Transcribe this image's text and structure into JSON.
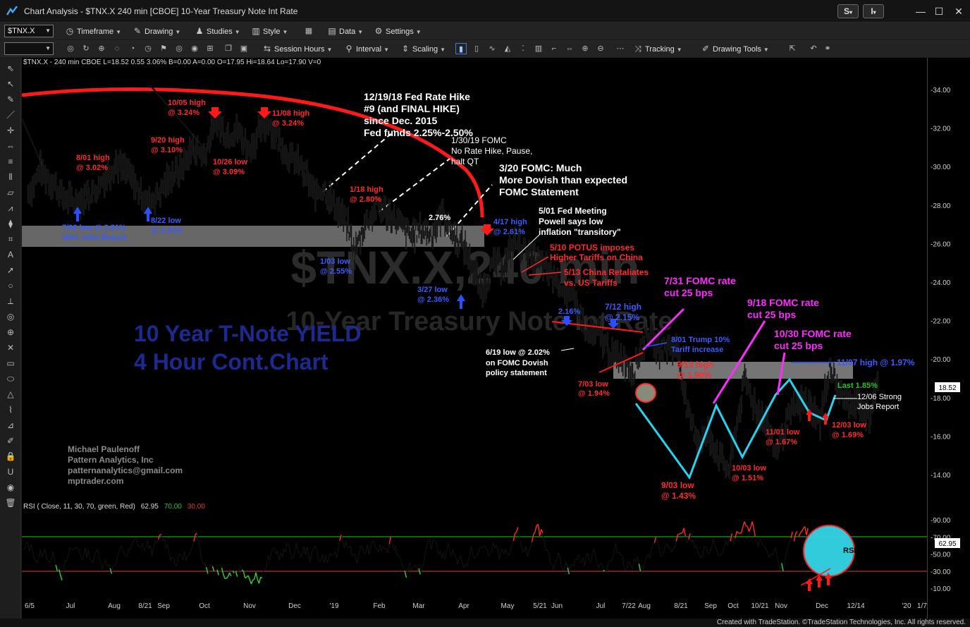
{
  "window": {
    "title": "Chart Analysis - $TNX.X 240 min [CBOE] 10-Year Treasury Note Int Rate",
    "btn_s": "S",
    "btn_i": "I"
  },
  "toolbar1": {
    "symbol": "$TNX.X",
    "timeframe": "Timeframe",
    "drawing": "Drawing",
    "studies": "Studies",
    "style": "Style",
    "data": "Data",
    "settings": "Settings"
  },
  "toolbar2": {
    "session_hours": "Session Hours",
    "interval": "Interval",
    "scaling": "Scaling",
    "tracking": "Tracking",
    "drawing_tools": "Drawing Tools"
  },
  "sidebar": {
    "icons": [
      "pointer-icon",
      "cursor-icon",
      "pencil-icon",
      "trendline-icon",
      "cross-icon",
      "arrows-icon",
      "hline-icon",
      "vline-icon",
      "channel-icon",
      "fib-icon",
      "fan-icon",
      "gann-icon",
      "text-icon",
      "arrow-icon",
      "circle-icon",
      "ruler-icon",
      "target-icon",
      "zoom-icon",
      "delete-icon",
      "rect-icon",
      "ellipse-icon",
      "triangle-icon",
      "polyline-icon",
      "measure-icon",
      "pen-icon",
      "lock-icon",
      "magnet-icon",
      "eye-icon",
      "trash-icon"
    ]
  },
  "chart": {
    "symbol_info": "$TNX.X - 240 min  CBOE  L=18.52  0.55  3.06%  B=0.00  A=0.00  O=17.95  Hi=18.64  Lo=17.90  V=0",
    "watermark_symbol": "$TNX.X,240 min",
    "watermark_name": "10-Year Treasury Note Int Rate",
    "rsi_label": "RSI ( Close, 11, 30, 70, green, Red)",
    "rsi_value": "62.95",
    "rsi_upper": "70.00",
    "rsi_lower": "30.00",
    "last_price_tag": "18.52",
    "rsi_last_tag": "62.95",
    "headline": [
      "10 Year T-Note YIELD",
      "4 Hour Cont.Chart"
    ],
    "author": [
      "Michael Paulenoff",
      "Pattern Analytics, Inc",
      "patternanalytics@gmail.com",
      "mptrader.com"
    ],
    "rsi_circle_label": "RSI",
    "annotations": {
      "fed_hike": [
        "12/19/18 Fed Rate Hike",
        "#9 (and FINAL HIKE)",
        "since Dec. 2015",
        "Fed funds 2.25%-2.50%"
      ],
      "fomc_1_30": [
        "1/30/19 FOMC",
        "No Rate Hike, Pause,",
        "halt QT"
      ],
      "fomc_3_20": [
        "3/20 FOMC: Much",
        "More Dovish than expected",
        "FOMC Statement"
      ],
      "fed_5_01": [
        "5/01 Fed Meeting",
        "Powell says low",
        "inflation \"transitory\""
      ],
      "potus_5_10": [
        "5/10 POTUS imposes",
        "Higher Tariffs on China"
      ],
      "china_5_13": [
        "5/13 China Retaliates",
        "vs. US Tariffs"
      ],
      "cut_7_31": [
        "7/31 FOMC rate",
        "cut 25 bps"
      ],
      "cut_9_18": [
        "9/18 FOMC rate",
        "cut 25 bps"
      ],
      "cut_10_30": [
        "10/30 FOMC rate",
        "cut 25 bps"
      ],
      "high_11_07": "11/07 high @ 1.97%",
      "last": "Last 1.85%",
      "jobs_12_06": [
        "12/06 Strong",
        "Jobs Report"
      ],
      "low_12_03": [
        "12/03 low",
        "@ 1.69%"
      ],
      "low_11_01": [
        "11/01 low",
        "@ 1.67%"
      ],
      "low_10_03": [
        "10/03 low",
        "@ 1.51%"
      ],
      "low_9_03": [
        "9/03 low",
        "@ 1.43%"
      ],
      "high_9_13": [
        "9/13 high",
        "@ 1.90%"
      ],
      "trump_8_01": [
        "8/01 Trump 10%",
        "Tariff increase"
      ],
      "high_7_12": [
        "7/12 high",
        "@ 2.15%"
      ],
      "low_7_03": [
        "7/03 low",
        "@ 1.94%"
      ],
      "low_6_19": [
        "6/19 low @ 2.02%",
        "on FOMC Dovish",
        "policy statement"
      ],
      "pct_2_16": "2.16%",
      "high_4_17": [
        "4/17 high",
        "@ 2.61%"
      ],
      "low_3_27": [
        "3/27 low",
        "@ 2.36%"
      ],
      "pct_2_76": "2.76%",
      "high_1_18": [
        "1/18 high",
        "@ 2.80%"
      ],
      "low_1_03": [
        "1/03 low",
        "@ 2.55%"
      ],
      "high_11_08": [
        "11/08 high",
        "@ 3.24%"
      ],
      "high_10_05": [
        "10/05 high",
        "@ 3.24%"
      ],
      "low_10_26": [
        "10/26 low",
        "@ 3.09%"
      ],
      "high_9_20": [
        "9/20 high",
        "@ 3.10%"
      ],
      "high_8_01": [
        "8/01 high",
        "@ 3.02%"
      ],
      "low_8_22": [
        "8/22 low",
        "@ 2.81%"
      ],
      "low_7_06": [
        "7/06 low @ 2.81%",
        "after Jobs Report"
      ]
    }
  },
  "chart_data": {
    "type": "line",
    "title": "10 Year T-Note YIELD 4 Hour Cont.Chart",
    "price_axis": {
      "ticks": [
        "34.00",
        "32.00",
        "30.00",
        "28.00",
        "26.00",
        "24.00",
        "22.00",
        "20.00",
        "18.00",
        "16.00",
        "14.00"
      ],
      "ylim": [
        13,
        35
      ]
    },
    "rsi_axis": {
      "ticks": [
        "90.00",
        "70.00",
        "50.00",
        "30.00",
        "10.00"
      ],
      "ylim": [
        0,
        100
      ]
    },
    "x_tick_labels": [
      "6/5",
      "Jul",
      "Aug",
      "8/21",
      "Sep",
      "Oct",
      "Nov",
      "Dec",
      "'19",
      "Feb",
      "Mar",
      "Apr",
      "May",
      "5/21",
      "Jun",
      "Jul",
      "7/22",
      "Aug",
      "8/21",
      "Sep",
      "Oct",
      "10/21",
      "Nov",
      "Dec",
      "12/14",
      "'20",
      "1/7"
    ],
    "price_path": [
      [
        "6/5/18",
        28.6
      ],
      [
        "6/13/18",
        29.8
      ],
      [
        "6/20/18",
        29.3
      ],
      [
        "6/28/18",
        28.4
      ],
      [
        "7/6/18",
        28.1
      ],
      [
        "7/13/18",
        28.5
      ],
      [
        "7/20/18",
        28.9
      ],
      [
        "8/1/18",
        30.2
      ],
      [
        "8/8/18",
        29.7
      ],
      [
        "8/15/18",
        28.8
      ],
      [
        "8/22/18",
        28.1
      ],
      [
        "8/29/18",
        28.7
      ],
      [
        "9/6/18",
        29.5
      ],
      [
        "9/13/18",
        29.9
      ],
      [
        "9/20/18",
        31.0
      ],
      [
        "9/27/18",
        30.6
      ],
      [
        "10/5/18",
        32.4
      ],
      [
        "10/12/18",
        31.6
      ],
      [
        "10/19/18",
        31.9
      ],
      [
        "10/26/18",
        30.9
      ],
      [
        "11/1/18",
        31.6
      ],
      [
        "11/8/18",
        32.4
      ],
      [
        "11/15/18",
        31.2
      ],
      [
        "11/22/18",
        30.5
      ],
      [
        "11/30/18",
        29.9
      ],
      [
        "12/7/18",
        28.6
      ],
      [
        "12/14/18",
        28.9
      ],
      [
        "12/21/18",
        27.9
      ],
      [
        "12/28/18",
        27.2
      ],
      [
        "1/3/19",
        25.6
      ],
      [
        "1/10/19",
        27.1
      ],
      [
        "1/18/19",
        27.9
      ],
      [
        "1/25/19",
        27.5
      ],
      [
        "2/1/19",
        27.0
      ],
      [
        "2/8/19",
        26.4
      ],
      [
        "2/15/19",
        26.7
      ],
      [
        "2/22/19",
        26.5
      ],
      [
        "3/1/19",
        27.6
      ],
      [
        "3/8/19",
        26.4
      ],
      [
        "3/15/19",
        25.9
      ],
      [
        "3/22/19",
        24.4
      ],
      [
        "3/27/19",
        23.6
      ],
      [
        "4/3/19",
        25.0
      ],
      [
        "4/10/19",
        24.9
      ],
      [
        "4/17/19",
        26.1
      ],
      [
        "4/24/19",
        25.6
      ],
      [
        "5/1/19",
        25.0
      ],
      [
        "5/8/19",
        24.6
      ],
      [
        "5/13/19",
        24.2
      ],
      [
        "5/20/19",
        23.7
      ],
      [
        "5/28/19",
        22.6
      ],
      [
        "6/3/19",
        21.2
      ],
      [
        "6/10/19",
        21.4
      ],
      [
        "6/19/19",
        20.2
      ],
      [
        "6/26/19",
        20.0
      ],
      [
        "7/3/19",
        19.4
      ],
      [
        "7/12/19",
        21.5
      ],
      [
        "7/19/19",
        20.5
      ],
      [
        "7/26/19",
        20.7
      ],
      [
        "8/1/19",
        20.4
      ],
      [
        "8/7/19",
        17.1
      ],
      [
        "8/14/19",
        15.8
      ],
      [
        "8/21/19",
        16.1
      ],
      [
        "8/28/19",
        14.8
      ],
      [
        "9/3/19",
        14.3
      ],
      [
        "9/13/19",
        19.0
      ],
      [
        "9/20/19",
        17.5
      ],
      [
        "9/27/19",
        16.8
      ],
      [
        "10/3/19",
        15.1
      ],
      [
        "10/10/19",
        16.7
      ],
      [
        "10/17/19",
        17.6
      ],
      [
        "10/24/19",
        17.8
      ],
      [
        "11/1/19",
        16.7
      ],
      [
        "11/7/19",
        19.7
      ],
      [
        "11/14/19",
        18.2
      ],
      [
        "11/21/19",
        17.6
      ],
      [
        "11/27/19",
        17.7
      ],
      [
        "12/3/19",
        16.9
      ],
      [
        "12/6/19",
        18.4
      ],
      [
        "12/9/19",
        18.5
      ]
    ],
    "rsi_path_note": "RSI(11) oscillating between ~15 and ~85 over the period; last 62.95",
    "rsi_levels": {
      "upper": 70,
      "lower": 30
    },
    "series": [
      {
        "name": "$TNX.X 240 min",
        "last": 18.52
      },
      {
        "name": "RSI ( Close, 11, 30, 70, green, Red)",
        "last": 62.95
      }
    ]
  }
}
